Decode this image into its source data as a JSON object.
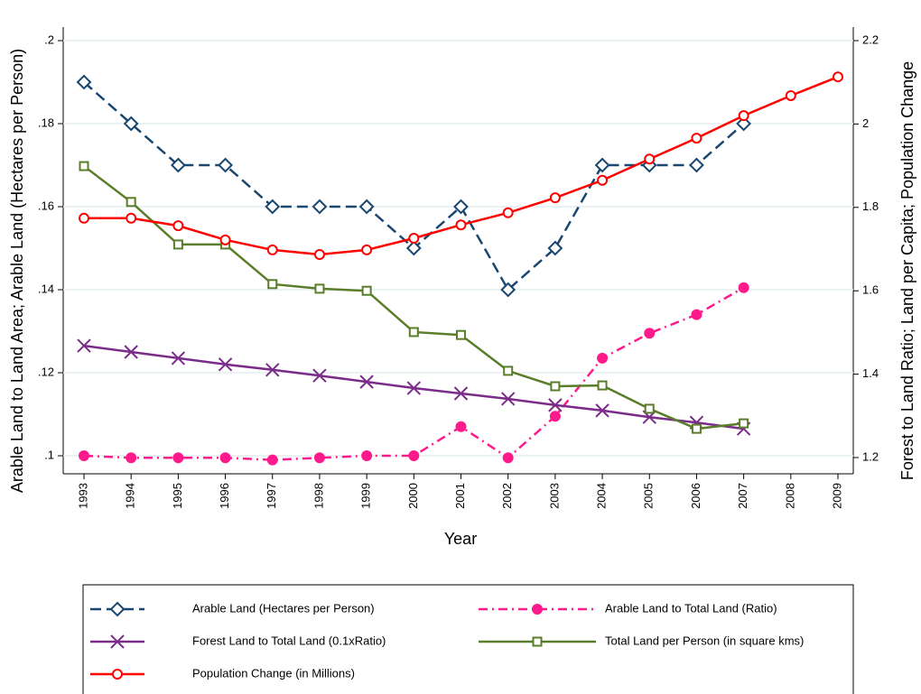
{
  "chart_data": {
    "type": "line",
    "x_label": "Year",
    "y_label": "Arable Land to Land Area; Arable Land (Hectares per Person)",
    "y2_label": "Forest to Land Ratio; Land per Capita; Population Change",
    "x": [
      1993,
      1994,
      1995,
      1996,
      1997,
      1998,
      1999,
      2000,
      2001,
      2002,
      2003,
      2004,
      2005,
      2006,
      2007,
      2008,
      2009
    ],
    "xlim": [
      1993,
      2009
    ],
    "xticks": [
      1993,
      1994,
      1995,
      1996,
      1997,
      1998,
      1999,
      2000,
      2001,
      2002,
      2003,
      2004,
      2005,
      2006,
      2007,
      2008,
      2009
    ],
    "ylim": [
      0.1,
      0.2
    ],
    "yticks": [
      {
        "value": 0.1,
        "label": ".1"
      },
      {
        "value": 0.12,
        "label": ".12"
      },
      {
        "value": 0.14,
        "label": ".14"
      },
      {
        "value": 0.16,
        "label": ".16"
      },
      {
        "value": 0.18,
        "label": ".18"
      },
      {
        "value": 0.2,
        "label": ".2"
      }
    ],
    "y2lim": [
      1.2,
      2.2
    ],
    "y2ticks": [
      1.2,
      1.4,
      1.6,
      1.8,
      2,
      2.2
    ],
    "grid": true,
    "series": [
      {
        "name": "Arable Land (Hectares per Person)",
        "color": "#1a476f",
        "dash": "dash",
        "marker": "diamond",
        "values": [
          0.19,
          0.18,
          0.17,
          0.17,
          0.16,
          0.16,
          0.16,
          0.15,
          0.16,
          0.14,
          0.15,
          0.17,
          0.17,
          0.17,
          0.18,
          null,
          null
        ]
      },
      {
        "name": "Arable Land to Total Land (Ratio)",
        "color": "#ff1a8c",
        "dash": "dashdot",
        "marker": "dot",
        "values": [
          0.1,
          0.0995,
          0.0995,
          0.0995,
          0.099,
          0.0995,
          0.1,
          0.1,
          0.107,
          0.0995,
          0.1095,
          0.1235,
          0.1295,
          0.134,
          0.1405,
          null,
          null
        ]
      },
      {
        "name": "Forest Land to Total Land (0.1xRatio)",
        "color": "#7b2c8b",
        "dash": "solid",
        "marker": "x",
        "values": [
          0.1265,
          0.125,
          0.1235,
          0.122,
          0.1207,
          0.1193,
          0.1178,
          0.1163,
          0.115,
          0.1137,
          0.1122,
          0.1109,
          0.1093,
          0.108,
          0.1065,
          null,
          null
        ]
      },
      {
        "name": "Total Land per Person (in square kms)",
        "color": "#5a7d2a",
        "dash": "solid",
        "marker": "square",
        "axis": "y2",
        "values": [
          1.899,
          1.813,
          1.711,
          1.711,
          1.616,
          1.605,
          1.6,
          1.501,
          1.494,
          1.408,
          1.371,
          1.373,
          1.317,
          1.269,
          1.282,
          null,
          null
        ]
      },
      {
        "name": "Population Change (in Millions)",
        "color": "#ff0000",
        "dash": "solid",
        "marker": "circle",
        "axis": "y2",
        "values": [
          1.774,
          1.774,
          1.756,
          1.722,
          1.698,
          1.687,
          1.698,
          1.726,
          1.758,
          1.787,
          1.823,
          1.865,
          1.916,
          1.966,
          2.02,
          2.068,
          2.113
        ]
      }
    ]
  }
}
